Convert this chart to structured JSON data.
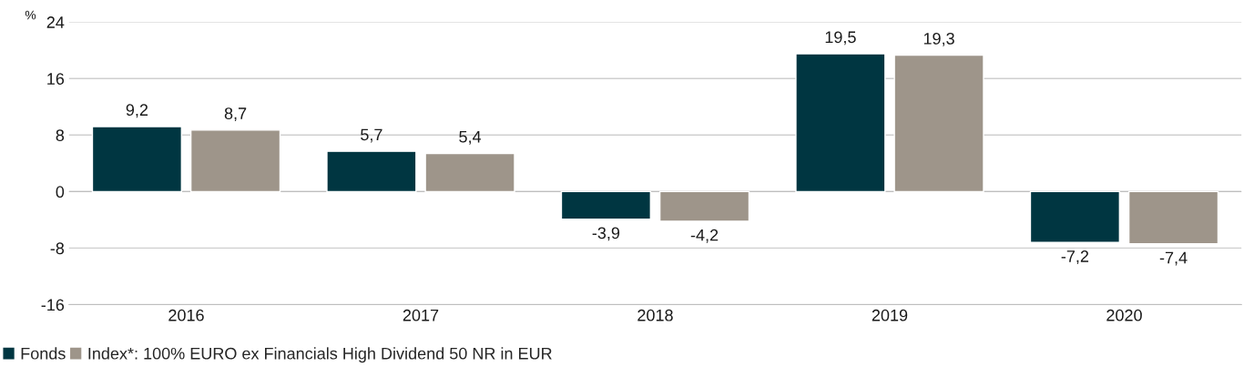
{
  "chart_data": {
    "type": "bar",
    "ylabel": "%",
    "categories": [
      "2016",
      "2017",
      "2018",
      "2019",
      "2020"
    ],
    "series": [
      {
        "name": "Fonds",
        "color": "#003641",
        "values": [
          9.2,
          5.7,
          -3.9,
          19.5,
          -7.2
        ],
        "value_labels": [
          "9,2",
          "5,7",
          "-3,9",
          "19,5",
          "-7,2"
        ]
      },
      {
        "name": "Index*: 100% EURO ex Financials High Dividend 50 NR in EUR",
        "color": "#9e958a",
        "values": [
          8.7,
          5.4,
          -4.2,
          19.3,
          -7.4
        ],
        "value_labels": [
          "8,7",
          "5,4",
          "-4,2",
          "19,3",
          "-7,4"
        ]
      }
    ],
    "ylim": [
      -16,
      24
    ],
    "yticks": [
      -16,
      -8,
      0,
      8,
      16,
      24
    ],
    "grid": "y",
    "legend": "bottom left"
  }
}
